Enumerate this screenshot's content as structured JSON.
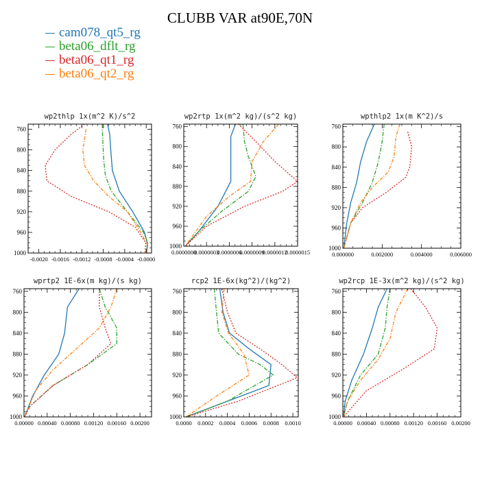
{
  "title": "CLUBB VAR at90E,70N",
  "legend": [
    {
      "name": "cam078_qt5_rg",
      "color": "#1f77b4",
      "dash": ""
    },
    {
      "name": "beta06_dflt_rg",
      "color": "#2ca02c",
      "dash": "6,2,1.5,2"
    },
    {
      "name": "beta06_qt1_rg",
      "color": "#d62728",
      "dash": "2,2"
    },
    {
      "name": "beta06_qt2_rg",
      "color": "#ff7f0e",
      "dash": "5,2,1.5,2"
    }
  ],
  "chart_data": [
    {
      "type": "line",
      "title": "wp2thlp  1x(m^2 K)/s^2",
      "xlim": [
        -0.0022,
        0.0001
      ],
      "xticks": [
        -0.002,
        -0.0016,
        -0.0012,
        -0.0008,
        -0.0004,
        0.0
      ],
      "xtick_labels": [
        "-0.0020",
        "-0.0016",
        "-0.0012",
        "-0.0008",
        "-0.0004",
        "-0.0000"
      ],
      "ylim": [
        750,
        1000
      ],
      "yticks": [
        760,
        800,
        840,
        880,
        920,
        960,
        1000
      ],
      "series": [
        {
          "name": "cam078_qt5_rg",
          "points": [
            [
              -0.00072,
              750
            ],
            [
              -0.00068,
              770
            ],
            [
              -0.00066,
              800
            ],
            [
              -0.00063,
              840
            ],
            [
              -0.0005,
              880
            ],
            [
              -0.00025,
              920
            ],
            [
              -3e-05,
              960
            ],
            [
              2e-05,
              980
            ],
            [
              1e-05,
              1000
            ]
          ]
        },
        {
          "name": "beta06_dflt_rg",
          "points": [
            [
              -0.00082,
              750
            ],
            [
              -0.00081,
              780
            ],
            [
              -0.00079,
              820
            ],
            [
              -0.00076,
              850
            ],
            [
              -0.00065,
              880
            ],
            [
              -0.00035,
              920
            ],
            [
              -5e-05,
              960
            ],
            [
              3e-05,
              980
            ],
            [
              1e-05,
              1000
            ]
          ]
        },
        {
          "name": "beta06_qt1_rg",
          "points": [
            [
              -0.00115,
              750
            ],
            [
              -0.0014,
              770
            ],
            [
              -0.0017,
              800
            ],
            [
              -0.00188,
              830
            ],
            [
              -0.00185,
              860
            ],
            [
              -0.0014,
              890
            ],
            [
              -0.0007,
              920
            ],
            [
              -0.0002,
              950
            ],
            [
              -1e-05,
              980
            ],
            [
              -2e-05,
              1000
            ]
          ]
        },
        {
          "name": "beta06_qt2_rg",
          "points": [
            [
              -0.00112,
              760
            ],
            [
              -0.00115,
              780
            ],
            [
              -0.00118,
              800
            ],
            [
              -0.00115,
              830
            ],
            [
              -0.00098,
              860
            ],
            [
              -0.0007,
              890
            ],
            [
              -0.00035,
              920
            ],
            [
              -0.0001,
              960
            ],
            [
              3e-05,
              985
            ],
            [
              1e-05,
              1000
            ]
          ]
        }
      ]
    },
    {
      "type": "line",
      "title": "wp2rtp  1x(m^2 kg)/(s^2 kg)",
      "xlim": [
        0.0,
        1.5e-06
      ],
      "xticks": [
        0.0,
        3e-07,
        6e-07,
        9e-07,
        1.2e-06,
        1.5e-06
      ],
      "xtick_labels": [
        "0.0000000",
        "0.0000003",
        "0.0000006",
        "0.0000009",
        "0.0000012",
        "0.0000015"
      ],
      "ylim": [
        755,
        1000
      ],
      "yticks": [
        760,
        800,
        840,
        880,
        920,
        960,
        1000
      ],
      "series": [
        {
          "name": "cam078_qt5_rg",
          "points": [
            [
              6.8e-07,
              755
            ],
            [
              6.2e-07,
              780
            ],
            [
              6.2e-07,
              820
            ],
            [
              6.2e-07,
              870
            ],
            [
              4.5e-07,
              920
            ],
            [
              2e-07,
              970
            ],
            [
              2e-08,
              1000
            ]
          ]
        },
        {
          "name": "beta06_dflt_rg",
          "points": [
            [
              7.8e-07,
              755
            ],
            [
              8e-07,
              790
            ],
            [
              8.5e-07,
              820
            ],
            [
              9.5e-07,
              860
            ],
            [
              8.5e-07,
              890
            ],
            [
              5e-07,
              930
            ],
            [
              2e-07,
              970
            ],
            [
              2e-08,
              1000
            ]
          ]
        },
        {
          "name": "beta06_qt1_rg",
          "points": [
            [
              7.2e-07,
              755
            ],
            [
              9.5e-07,
              790
            ],
            [
              1.2e-06,
              830
            ],
            [
              1.5e-06,
              870
            ],
            [
              1.3e-06,
              890
            ],
            [
              8e-07,
              920
            ],
            [
              3e-07,
              960
            ],
            [
              2e-08,
              1000
            ]
          ]
        },
        {
          "name": "beta06_qt2_rg",
          "points": [
            [
              1.25e-06,
              755
            ],
            [
              1.05e-06,
              790
            ],
            [
              9e-07,
              830
            ],
            [
              8.8e-07,
              870
            ],
            [
              6e-07,
              900
            ],
            [
              3e-07,
              940
            ],
            [
              2e-08,
              1000
            ]
          ]
        }
      ]
    },
    {
      "type": "line",
      "title": "wpthlp2  1x(m K^2)/s",
      "xlim": [
        0.0,
        0.006
      ],
      "xticks": [
        0.0,
        0.002,
        0.004,
        0.006
      ],
      "xtick_labels": [
        "0.000000",
        "0.002000",
        "0.004000",
        "0.006000"
      ],
      "ylim": [
        755,
        1000
      ],
      "yticks": [
        760,
        800,
        840,
        880,
        920,
        960,
        1000
      ],
      "series": [
        {
          "name": "cam078_qt5_rg",
          "points": [
            [
              0.0016,
              755
            ],
            [
              0.0012,
              790
            ],
            [
              0.0009,
              830
            ],
            [
              0.0007,
              870
            ],
            [
              0.0004,
              910
            ],
            [
              0.0002,
              950
            ],
            [
              5e-05,
              1000
            ]
          ]
        },
        {
          "name": "beta06_dflt_rg",
          "points": [
            [
              0.0021,
              755
            ],
            [
              0.002,
              790
            ],
            [
              0.0018,
              830
            ],
            [
              0.0015,
              870
            ],
            [
              0.001,
              910
            ],
            [
              0.0004,
              950
            ],
            [
              5e-05,
              1000
            ]
          ]
        },
        {
          "name": "beta06_qt1_rg",
          "points": [
            [
              0.0033,
              770
            ],
            [
              0.0035,
              800
            ],
            [
              0.0034,
              840
            ],
            [
              0.0032,
              860
            ],
            [
              0.0022,
              890
            ],
            [
              0.001,
              920
            ],
            [
              0.0004,
              950
            ],
            [
              5e-05,
              1000
            ]
          ]
        },
        {
          "name": "beta06_qt2_rg",
          "points": [
            [
              0.0029,
              755
            ],
            [
              0.0027,
              780
            ],
            [
              0.0026,
              820
            ],
            [
              0.0023,
              850
            ],
            [
              0.0015,
              880
            ],
            [
              0.0009,
              910
            ],
            [
              0.0004,
              950
            ],
            [
              5e-05,
              1000
            ]
          ]
        }
      ]
    },
    {
      "type": "line",
      "title": "wprtp2  1E-6x(m kg)/(s kg)",
      "xlim": [
        0.0,
        0.0022
      ],
      "xticks": [
        0.0,
        0.0004,
        0.0008,
        0.0012,
        0.0016,
        0.002
      ],
      "xtick_labels": [
        "0.00000",
        "0.00040",
        "0.00080",
        "0.00120",
        "0.00160",
        "0.00200"
      ],
      "ylim": [
        755,
        1000
      ],
      "yticks": [
        760,
        800,
        840,
        880,
        920,
        960,
        1000
      ],
      "series": [
        {
          "name": "cam078_qt5_rg",
          "points": [
            [
              0.00095,
              755
            ],
            [
              0.00075,
              790
            ],
            [
              0.0007,
              840
            ],
            [
              0.0006,
              880
            ],
            [
              0.00035,
              920
            ],
            [
              0.00015,
              960
            ],
            [
              1e-05,
              1000
            ]
          ]
        },
        {
          "name": "beta06_dflt_rg",
          "points": [
            [
              0.0013,
              755
            ],
            [
              0.0014,
              790
            ],
            [
              0.0016,
              830
            ],
            [
              0.0016,
              860
            ],
            [
              0.0011,
              900
            ],
            [
              0.0005,
              940
            ],
            [
              0.0001,
              980
            ],
            [
              1e-05,
              1000
            ]
          ]
        },
        {
          "name": "beta06_qt1_rg",
          "points": [
            [
              0.0013,
              755
            ],
            [
              0.0013,
              790
            ],
            [
              0.0014,
              830
            ],
            [
              0.0015,
              860
            ],
            [
              0.0011,
              900
            ],
            [
              0.0005,
              940
            ],
            [
              0.0001,
              980
            ],
            [
              1e-05,
              1000
            ]
          ]
        },
        {
          "name": "beta06_qt2_rg",
          "points": [
            [
              0.0016,
              755
            ],
            [
              0.0015,
              790
            ],
            [
              0.0013,
              830
            ],
            [
              0.0009,
              870
            ],
            [
              0.0005,
              910
            ],
            [
              0.0002,
              950
            ],
            [
              1e-05,
              1000
            ]
          ]
        }
      ]
    },
    {
      "type": "line",
      "title": "rcp2  1E-6x(kg^2)/(kg^2)",
      "xlim": [
        0.0,
        0.00105
      ],
      "xticks": [
        0.0,
        0.0002,
        0.0004,
        0.0006,
        0.0008,
        0.001
      ],
      "xtick_labels": [
        "0.0000",
        "0.0002",
        "0.0004",
        "0.0006",
        "0.0008",
        "0.0010"
      ],
      "ylim": [
        755,
        1000
      ],
      "yticks": [
        760,
        800,
        840,
        880,
        920,
        960,
        1000
      ],
      "series": [
        {
          "name": "cam078_qt5_rg",
          "points": [
            [
              0.00033,
              755
            ],
            [
              0.00036,
              800
            ],
            [
              0.00042,
              840
            ],
            [
              0.0006,
              870
            ],
            [
              0.0008,
              900
            ],
            [
              0.00078,
              940
            ],
            [
              0.0004,
              970
            ],
            [
              2e-05,
              1000
            ]
          ]
        },
        {
          "name": "beta06_dflt_rg",
          "points": [
            [
              0.00028,
              755
            ],
            [
              0.0003,
              800
            ],
            [
              0.00032,
              840
            ],
            [
              0.0005,
              880
            ],
            [
              0.0007,
              900
            ],
            [
              0.00082,
              920
            ],
            [
              0.0004,
              970
            ],
            [
              2e-05,
              1000
            ]
          ]
        },
        {
          "name": "beta06_qt1_rg",
          "points": [
            [
              0.00035,
              755
            ],
            [
              0.0004,
              800
            ],
            [
              0.00048,
              840
            ],
            [
              0.0007,
              870
            ],
            [
              0.0009,
              900
            ],
            [
              0.00104,
              925
            ],
            [
              0.0005,
              970
            ],
            [
              2e-05,
              1000
            ]
          ]
        },
        {
          "name": "beta06_qt2_rg",
          "points": [
            [
              0.00037,
              755
            ],
            [
              0.00035,
              800
            ],
            [
              0.00041,
              840
            ],
            [
              0.00055,
              880
            ],
            [
              0.0006,
              920
            ],
            [
              0.0003,
              960
            ],
            [
              2e-05,
              1000
            ]
          ]
        }
      ]
    },
    {
      "type": "line",
      "title": "wp2rcp  1E-3x(m^2 kg)/(s^2 kg)",
      "xlim": [
        0.0,
        0.002
      ],
      "xticks": [
        0.0,
        0.0004,
        0.0008,
        0.0012,
        0.0016,
        0.002
      ],
      "xtick_labels": [
        "0.00000",
        "0.00040",
        "0.00080",
        "0.00120",
        "0.00160",
        "0.00200"
      ],
      "ylim": [
        755,
        1000
      ],
      "yticks": [
        760,
        800,
        840,
        880,
        920,
        960,
        1000
      ],
      "series": [
        {
          "name": "cam078_qt5_rg",
          "points": [
            [
              0.00075,
              755
            ],
            [
              0.0006,
              790
            ],
            [
              0.0005,
              830
            ],
            [
              0.00035,
              880
            ],
            [
              0.00015,
              930
            ],
            [
              4e-05,
              970
            ],
            [
              1e-05,
              1000
            ]
          ]
        },
        {
          "name": "beta06_dflt_rg",
          "points": [
            [
              0.0008,
              755
            ],
            [
              0.00075,
              790
            ],
            [
              0.00072,
              830
            ],
            [
              0.0006,
              880
            ],
            [
              0.0003,
              920
            ],
            [
              8e-05,
              970
            ],
            [
              1e-05,
              1000
            ]
          ]
        },
        {
          "name": "beta06_qt1_rg",
          "points": [
            [
              0.00115,
              755
            ],
            [
              0.0014,
              790
            ],
            [
              0.0016,
              830
            ],
            [
              0.00155,
              870
            ],
            [
              0.001,
              910
            ],
            [
              0.0004,
              950
            ],
            [
              1e-05,
              1000
            ]
          ]
        },
        {
          "name": "beta06_qt2_rg",
          "points": [
            [
              0.0011,
              755
            ],
            [
              0.0009,
              800
            ],
            [
              0.0008,
              850
            ],
            [
              0.0006,
              890
            ],
            [
              0.0003,
              930
            ],
            [
              8e-05,
              970
            ],
            [
              1e-05,
              1000
            ]
          ]
        }
      ]
    }
  ]
}
